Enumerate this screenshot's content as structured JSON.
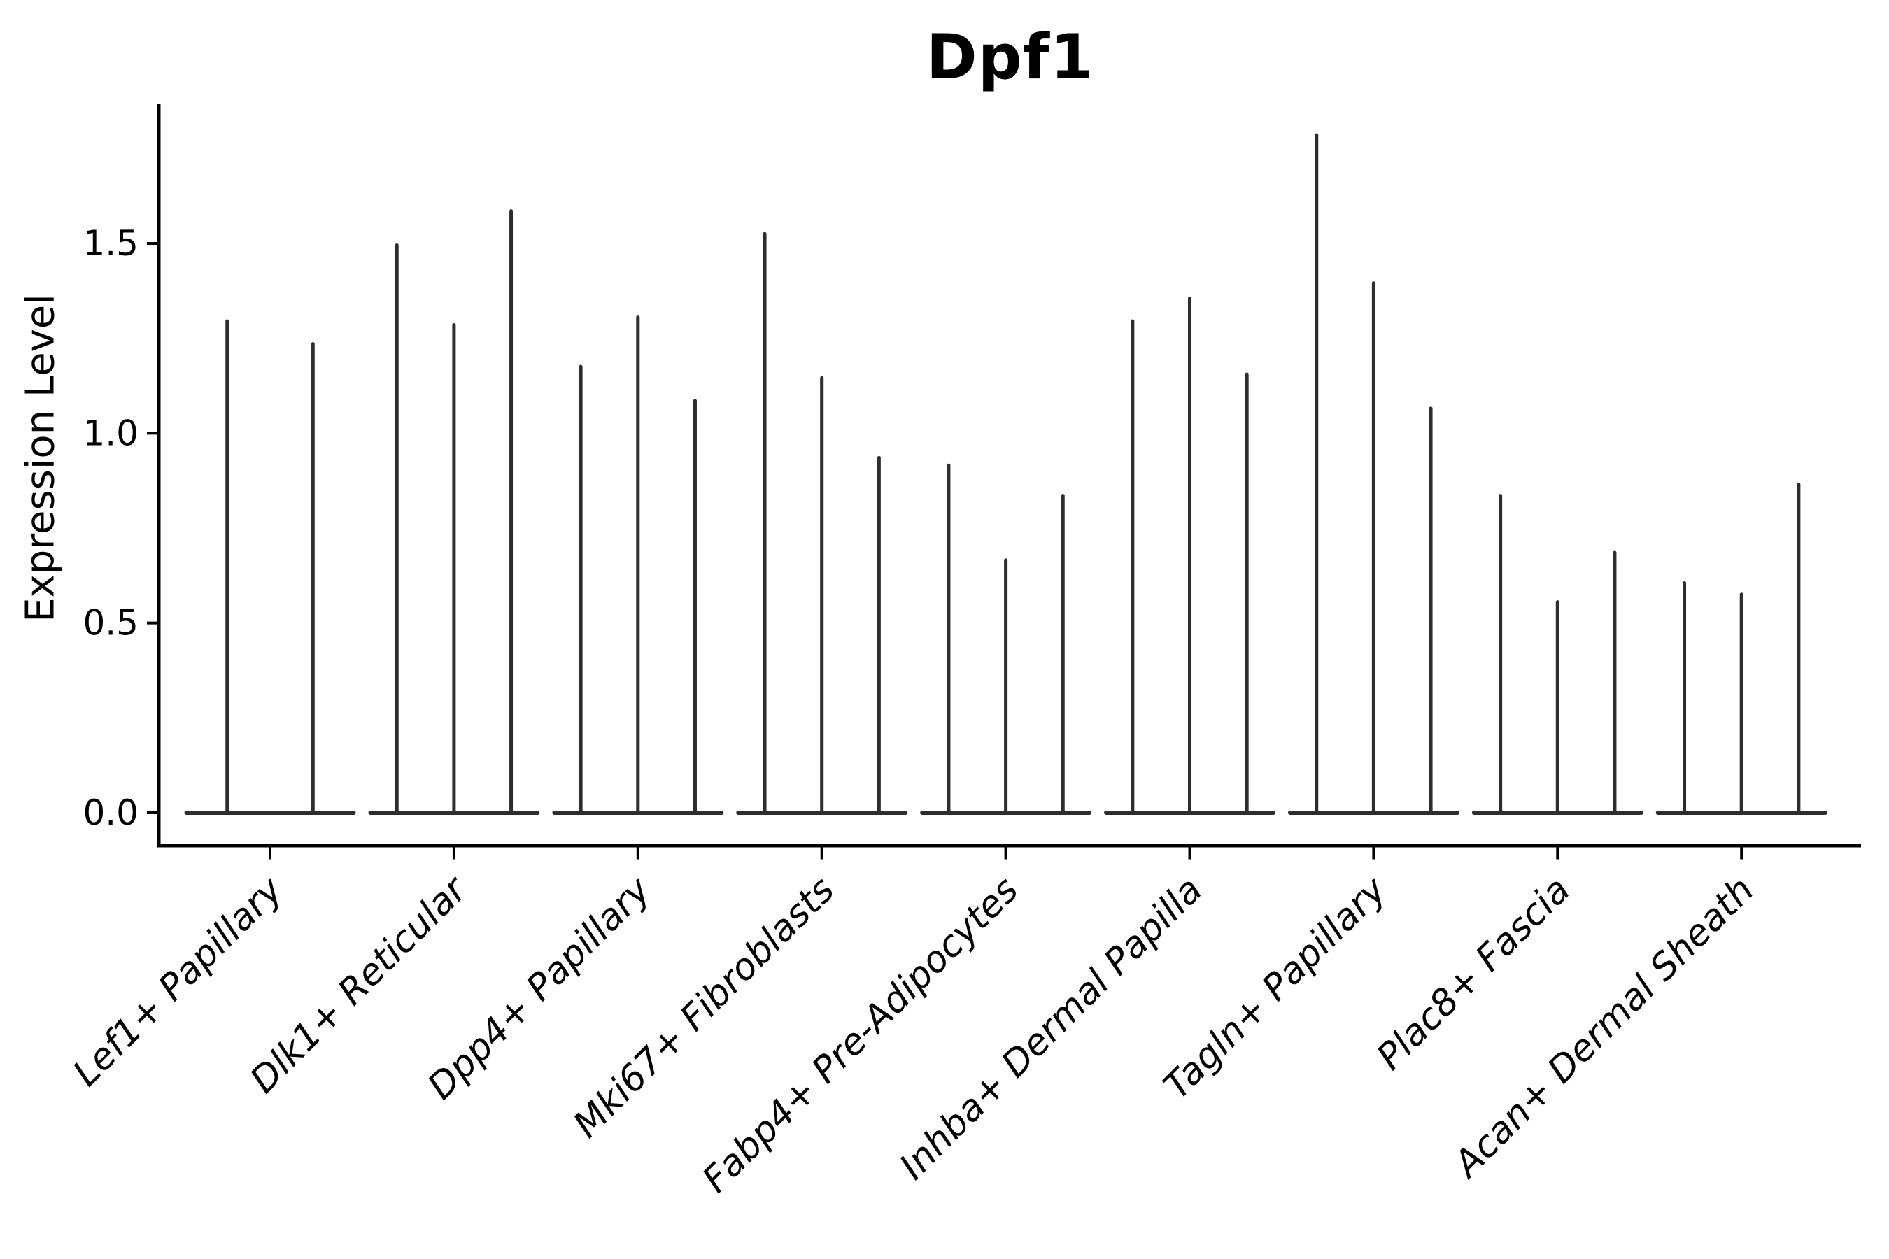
{
  "title": "Dpf1",
  "axes": {
    "ylabel": "Expression Level",
    "ytick_labels": [
      "0.0",
      "0.5",
      "1.0",
      "1.5"
    ]
  },
  "chart_data": {
    "type": "violin",
    "title": "Dpf1",
    "xlabel": "",
    "ylabel": "Expression Level",
    "ylim": [
      0,
      1.87
    ],
    "yticks": [
      0.0,
      0.5,
      1.0,
      1.5
    ],
    "grid": false,
    "legend": "none",
    "style": "needle-violins; flat base at 0; thin spike to max expression; groups of violins share a merged base",
    "categories": [
      "Lef1+ Papillary",
      "Dlk1+ Reticular",
      "Dpp4+ Papillary",
      "Mki67+ Fibroblasts",
      "Fabp4+ Pre-Adipocytes",
      "Inhba+ Dermal Papilla",
      "Tagln+ Papillary",
      "Plac8+ Fascia",
      "Acan+ Dermal Sheath"
    ],
    "series": [
      {
        "category": "Lef1+ Papillary",
        "violin_maxima": [
          1.3,
          1.24
        ]
      },
      {
        "category": "Dlk1+ Reticular",
        "violin_maxima": [
          1.5,
          1.29,
          1.59
        ]
      },
      {
        "category": "Dpp4+ Papillary",
        "violin_maxima": [
          1.18,
          1.31,
          1.09
        ]
      },
      {
        "category": "Mki67+ Fibroblasts",
        "violin_maxima": [
          1.53,
          1.15,
          0.94
        ]
      },
      {
        "category": "Fabp4+ Pre-Adipocytes",
        "violin_maxima": [
          0.92,
          0.67,
          0.84
        ]
      },
      {
        "category": "Inhba+ Dermal Papilla",
        "violin_maxima": [
          1.3,
          1.36,
          1.16
        ]
      },
      {
        "category": "Tagln+ Papillary",
        "violin_maxima": [
          1.79,
          1.4,
          1.07
        ]
      },
      {
        "category": "Plac8+ Fascia",
        "violin_maxima": [
          0.84,
          0.56,
          0.69
        ]
      },
      {
        "category": "Acan+ Dermal Sheath",
        "violin_maxima": [
          0.61,
          0.58,
          0.87
        ]
      }
    ],
    "colors": {
      "violin": "#2d2d2d",
      "axis": "#000000",
      "text": "#000000",
      "background": "#ffffff"
    }
  }
}
